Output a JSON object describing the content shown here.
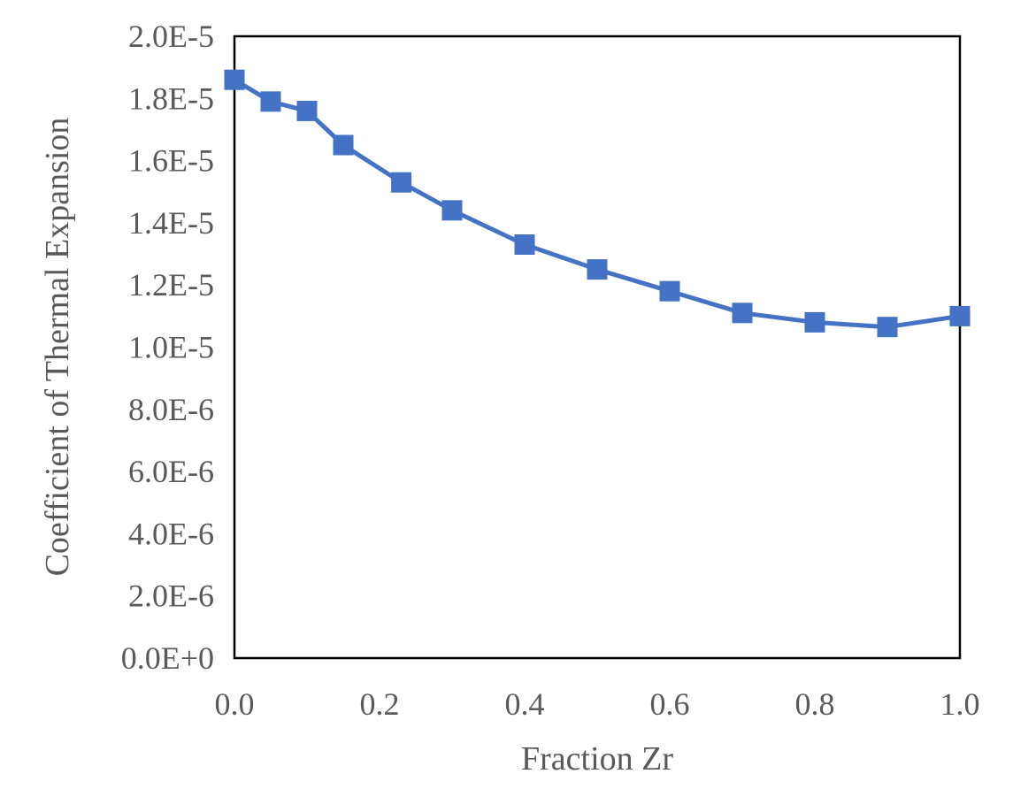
{
  "chart_data": {
    "type": "line",
    "title": "",
    "xlabel": "Fraction Zr",
    "ylabel": "Coefficient of Thermal Expansion",
    "xlim": [
      0.0,
      1.0
    ],
    "ylim": [
      0.0,
      2e-05
    ],
    "x_ticks": [
      "0.0",
      "0.2",
      "0.4",
      "0.6",
      "0.8",
      "1.0"
    ],
    "x_tick_values": [
      0.0,
      0.2,
      0.4,
      0.6,
      0.8,
      1.0
    ],
    "y_ticks": [
      "0.0E+0",
      "2.0E-6",
      "4.0E-6",
      "6.0E-6",
      "8.0E-6",
      "1.0E-5",
      "1.2E-5",
      "1.4E-5",
      "1.6E-5",
      "1.8E-5",
      "2.0E-5"
    ],
    "y_tick_values": [
      0,
      2e-06,
      4e-06,
      6e-06,
      8e-06,
      1e-05,
      1.2e-05,
      1.4e-05,
      1.6e-05,
      1.8e-05,
      2e-05
    ],
    "grid": false,
    "legend": "none",
    "marker": "square",
    "color": "#4472C4",
    "series": [
      {
        "x": [
          0.0,
          0.05,
          0.1,
          0.15,
          0.23,
          0.3,
          0.4,
          0.5,
          0.6,
          0.7,
          0.8,
          0.9,
          1.0
        ],
        "y": [
          1.86e-05,
          1.79e-05,
          1.76e-05,
          1.65e-05,
          1.53e-05,
          1.44e-05,
          1.33e-05,
          1.25e-05,
          1.18e-05,
          1.11e-05,
          1.08e-05,
          1.065e-05,
          1.1e-05
        ]
      }
    ]
  }
}
